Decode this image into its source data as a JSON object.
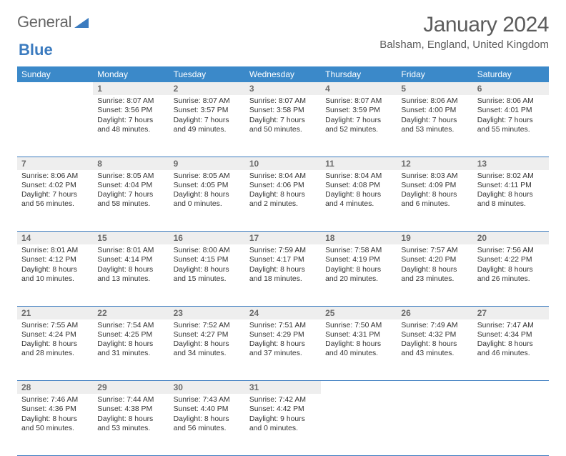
{
  "logo": {
    "word1": "General",
    "word2": "Blue"
  },
  "title": "January 2024",
  "location": "Balsham, England, United Kingdom",
  "colors": {
    "header_bg": "#3b89c9",
    "header_text": "#ffffff",
    "daynum_bg": "#eeeeee",
    "daynum_text": "#6a6a6a",
    "rule": "#3b7bbf",
    "body_text": "#333333",
    "title_text": "#5c5c5c",
    "logo_gray": "#666666",
    "logo_blue": "#3b7bbf"
  },
  "dayNames": [
    "Sunday",
    "Monday",
    "Tuesday",
    "Wednesday",
    "Thursday",
    "Friday",
    "Saturday"
  ],
  "firstDayIndex": 1,
  "daysInMonth": 31,
  "days": {
    "1": {
      "sunrise": "8:07 AM",
      "sunset": "3:56 PM",
      "daylight": "7 hours and 48 minutes."
    },
    "2": {
      "sunrise": "8:07 AM",
      "sunset": "3:57 PM",
      "daylight": "7 hours and 49 minutes."
    },
    "3": {
      "sunrise": "8:07 AM",
      "sunset": "3:58 PM",
      "daylight": "7 hours and 50 minutes."
    },
    "4": {
      "sunrise": "8:07 AM",
      "sunset": "3:59 PM",
      "daylight": "7 hours and 52 minutes."
    },
    "5": {
      "sunrise": "8:06 AM",
      "sunset": "4:00 PM",
      "daylight": "7 hours and 53 minutes."
    },
    "6": {
      "sunrise": "8:06 AM",
      "sunset": "4:01 PM",
      "daylight": "7 hours and 55 minutes."
    },
    "7": {
      "sunrise": "8:06 AM",
      "sunset": "4:02 PM",
      "daylight": "7 hours and 56 minutes."
    },
    "8": {
      "sunrise": "8:05 AM",
      "sunset": "4:04 PM",
      "daylight": "7 hours and 58 minutes."
    },
    "9": {
      "sunrise": "8:05 AM",
      "sunset": "4:05 PM",
      "daylight": "8 hours and 0 minutes."
    },
    "10": {
      "sunrise": "8:04 AM",
      "sunset": "4:06 PM",
      "daylight": "8 hours and 2 minutes."
    },
    "11": {
      "sunrise": "8:04 AM",
      "sunset": "4:08 PM",
      "daylight": "8 hours and 4 minutes."
    },
    "12": {
      "sunrise": "8:03 AM",
      "sunset": "4:09 PM",
      "daylight": "8 hours and 6 minutes."
    },
    "13": {
      "sunrise": "8:02 AM",
      "sunset": "4:11 PM",
      "daylight": "8 hours and 8 minutes."
    },
    "14": {
      "sunrise": "8:01 AM",
      "sunset": "4:12 PM",
      "daylight": "8 hours and 10 minutes."
    },
    "15": {
      "sunrise": "8:01 AM",
      "sunset": "4:14 PM",
      "daylight": "8 hours and 13 minutes."
    },
    "16": {
      "sunrise": "8:00 AM",
      "sunset": "4:15 PM",
      "daylight": "8 hours and 15 minutes."
    },
    "17": {
      "sunrise": "7:59 AM",
      "sunset": "4:17 PM",
      "daylight": "8 hours and 18 minutes."
    },
    "18": {
      "sunrise": "7:58 AM",
      "sunset": "4:19 PM",
      "daylight": "8 hours and 20 minutes."
    },
    "19": {
      "sunrise": "7:57 AM",
      "sunset": "4:20 PM",
      "daylight": "8 hours and 23 minutes."
    },
    "20": {
      "sunrise": "7:56 AM",
      "sunset": "4:22 PM",
      "daylight": "8 hours and 26 minutes."
    },
    "21": {
      "sunrise": "7:55 AM",
      "sunset": "4:24 PM",
      "daylight": "8 hours and 28 minutes."
    },
    "22": {
      "sunrise": "7:54 AM",
      "sunset": "4:25 PM",
      "daylight": "8 hours and 31 minutes."
    },
    "23": {
      "sunrise": "7:52 AM",
      "sunset": "4:27 PM",
      "daylight": "8 hours and 34 minutes."
    },
    "24": {
      "sunrise": "7:51 AM",
      "sunset": "4:29 PM",
      "daylight": "8 hours and 37 minutes."
    },
    "25": {
      "sunrise": "7:50 AM",
      "sunset": "4:31 PM",
      "daylight": "8 hours and 40 minutes."
    },
    "26": {
      "sunrise": "7:49 AM",
      "sunset": "4:32 PM",
      "daylight": "8 hours and 43 minutes."
    },
    "27": {
      "sunrise": "7:47 AM",
      "sunset": "4:34 PM",
      "daylight": "8 hours and 46 minutes."
    },
    "28": {
      "sunrise": "7:46 AM",
      "sunset": "4:36 PM",
      "daylight": "8 hours and 50 minutes."
    },
    "29": {
      "sunrise": "7:44 AM",
      "sunset": "4:38 PM",
      "daylight": "8 hours and 53 minutes."
    },
    "30": {
      "sunrise": "7:43 AM",
      "sunset": "4:40 PM",
      "daylight": "8 hours and 56 minutes."
    },
    "31": {
      "sunrise": "7:42 AM",
      "sunset": "4:42 PM",
      "daylight": "9 hours and 0 minutes."
    }
  },
  "labels": {
    "sunrise": "Sunrise:",
    "sunset": "Sunset:",
    "daylight": "Daylight:"
  }
}
